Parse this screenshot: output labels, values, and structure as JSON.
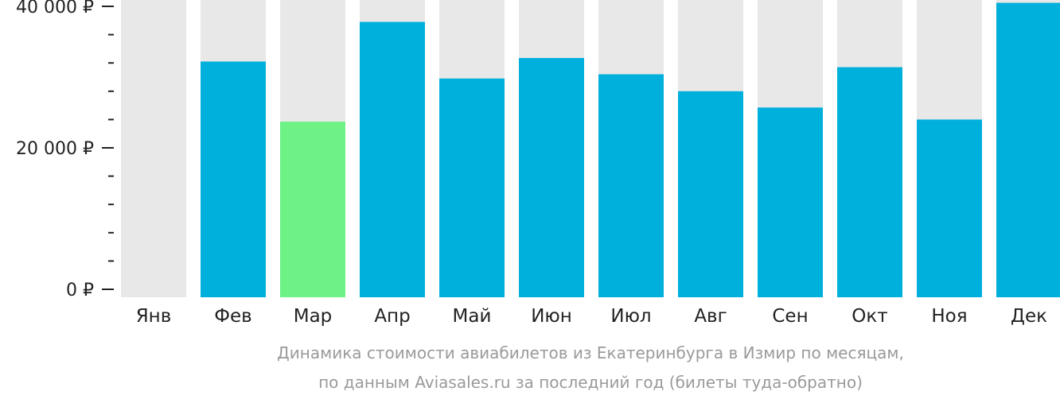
{
  "chart_data": {
    "type": "bar",
    "categories": [
      "Янв",
      "Фев",
      "Мар",
      "Апр",
      "Май",
      "Июн",
      "Июл",
      "Авг",
      "Сен",
      "Окт",
      "Ноя",
      "Дек"
    ],
    "values": [
      null,
      32200,
      23700,
      37800,
      29800,
      32700,
      30400,
      28000,
      25700,
      31400,
      24000,
      40500
    ],
    "ylim": [
      0,
      40000
    ],
    "yticks": [
      {
        "value": 40000,
        "label": "40 000 ₽"
      },
      {
        "value": 20000,
        "label": "20 000 ₽"
      },
      {
        "value": 0,
        "label": "0 ₽"
      }
    ],
    "minor_tick_step": 4000,
    "highlight_category": "Мар",
    "grid": false,
    "legend": "none",
    "colors": {
      "bar": "#00b0dc",
      "highlight": "#6ef286",
      "track": "#e8e8e8",
      "axis_text": "#222222",
      "caption_text": "#9a9a9a"
    }
  },
  "caption": {
    "line1": "Динамика стоимости авиабилетов из Екатеринбурга в Измир по месяцам,",
    "line2": "по данным Aviasales.ru за последний год (билеты туда-обратно)"
  }
}
